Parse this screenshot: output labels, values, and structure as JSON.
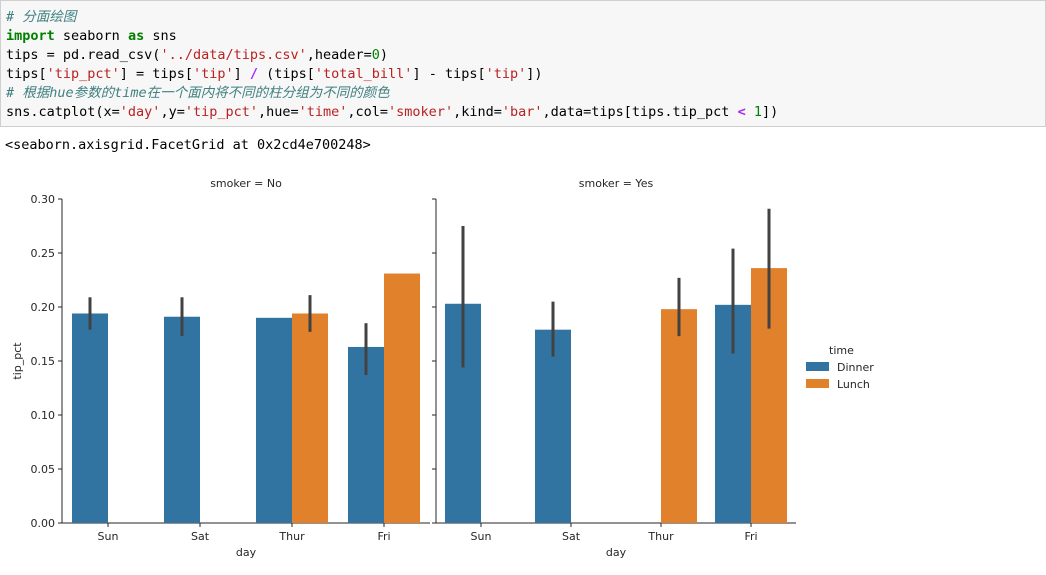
{
  "code_lines": [
    {
      "comment": "# 分面绘图"
    },
    {
      "kw": "import",
      "t1": " seaborn ",
      "kw2": "as",
      "t2": " sns"
    },
    {
      "t1": "tips = pd.read_csv(",
      "s1": "'../data/tips.csv'",
      "t2": ",header=",
      "n1": "0",
      "t3": ")"
    },
    {
      "t1": "tips[",
      "s1": "'tip_pct'",
      "t2": "] = tips[",
      "s2": "'tip'",
      "t3": "] ",
      "op": "/",
      "t4": " (tips[",
      "s3": "'total_bill'",
      "t5": "] - tips[",
      "s4": "'tip'",
      "t6": "])"
    },
    {
      "comment": "# 根据hue参数的time在一个面内将不同的柱分组为不同的颜色"
    },
    {
      "t1": "sns.catplot(x=",
      "s1": "'day'",
      "t2": ",y=",
      "s2": "'tip_pct'",
      "t3": ",hue=",
      "s3": "'time'",
      "t4": ",col=",
      "s4": "'smoker'",
      "t5": ",kind=",
      "s5": "'bar'",
      "t6": ",data=tips[tips.tip_pct ",
      "op": "<",
      "t7": " ",
      "n1": "1",
      "t8": "])"
    }
  ],
  "output_text": "<seaborn.axisgrid.FacetGrid at 0x2cd4e700248>",
  "chart_data": {
    "type": "bar",
    "ylabel": "tip_pct",
    "xlabel": "day",
    "categories": [
      "Sun",
      "Sat",
      "Thur",
      "Fri"
    ],
    "ylim": [
      0,
      0.3
    ],
    "yticks": [
      "0.00",
      "0.05",
      "0.10",
      "0.15",
      "0.20",
      "0.25",
      "0.30"
    ],
    "legend": {
      "title": "time",
      "placement": "right"
    },
    "colors": {
      "Dinner": "#3274a1",
      "Lunch": "#e1812c",
      "errbar": "#424242"
    },
    "panels": [
      {
        "title": "smoker = No",
        "series": [
          {
            "name": "Dinner",
            "values": [
              0.194,
              0.191,
              0.19,
              0.163
            ],
            "ci": [
              [
                0.179,
                0.209
              ],
              [
                0.173,
                0.209
              ],
              null,
              [
                0.137,
                0.185
              ]
            ]
          },
          {
            "name": "Lunch",
            "values": [
              null,
              null,
              0.194,
              0.231
            ],
            "ci": [
              null,
              null,
              [
                0.177,
                0.211
              ],
              null
            ]
          }
        ]
      },
      {
        "title": "smoker = Yes",
        "series": [
          {
            "name": "Dinner",
            "values": [
              0.203,
              0.179,
              null,
              0.202
            ],
            "ci": [
              [
                0.144,
                0.275
              ],
              [
                0.154,
                0.205
              ],
              null,
              [
                0.157,
                0.254
              ]
            ]
          },
          {
            "name": "Lunch",
            "values": [
              null,
              null,
              0.198,
              0.236
            ],
            "ci": [
              null,
              null,
              [
                0.173,
                0.227
              ],
              [
                0.18,
                0.291
              ]
            ]
          }
        ]
      }
    ]
  }
}
